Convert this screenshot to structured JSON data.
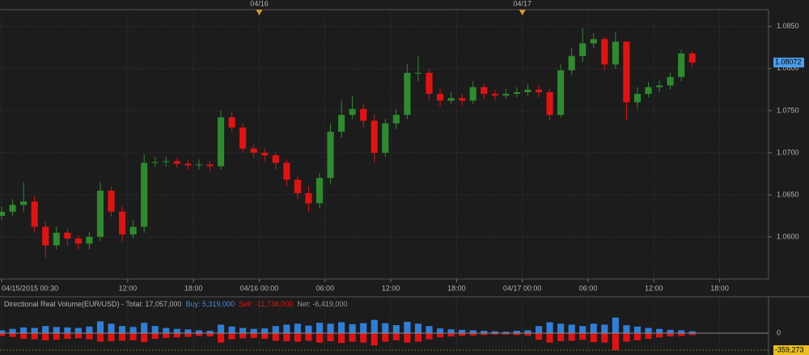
{
  "chart_data": {
    "type": "candlestick",
    "open": [
      1.0625,
      1.063,
      1.0638,
      1.0642,
      1.0612,
      1.059,
      1.0605,
      1.0598,
      1.0592,
      1.06,
      1.0655,
      1.063,
      1.0603,
      1.0612,
      1.0688,
      1.0689,
      1.069,
      1.0687,
      1.0685,
      1.0686,
      1.0684,
      1.0742,
      1.073,
      1.0705,
      1.07,
      1.0697,
      1.0688,
      1.0668,
      1.0652,
      1.064,
      1.067,
      1.0725,
      1.0745,
      1.0752,
      1.0738,
      1.07,
      1.0735,
      1.0745,
      1.0795,
      1.0795,
      1.077,
      1.0762,
      1.0765,
      1.0762,
      1.0778,
      1.077,
      1.0768,
      1.077,
      1.0772,
      1.0775,
      1.0772,
      1.0745,
      1.0798,
      1.0815,
      1.083,
      1.0835,
      1.0805,
      1.0832,
      1.076,
      1.077,
      1.0778,
      1.078,
      1.079,
      1.0818
    ],
    "high": [
      1.0636,
      1.0645,
      1.0665,
      1.0648,
      1.0618,
      1.0612,
      1.061,
      1.0602,
      1.0606,
      1.0665,
      1.066,
      1.0636,
      1.062,
      1.0698,
      1.0695,
      1.0695,
      1.0694,
      1.0691,
      1.0692,
      1.069,
      1.075,
      1.0748,
      1.0735,
      1.071,
      1.0705,
      1.07,
      1.0692,
      1.0672,
      1.066,
      1.0676,
      1.0735,
      1.0762,
      1.0768,
      1.0758,
      1.0745,
      1.074,
      1.0752,
      1.0805,
      1.0815,
      1.08,
      1.0776,
      1.0772,
      1.077,
      1.0785,
      1.0782,
      1.0775,
      1.0776,
      1.0778,
      1.0782,
      1.078,
      1.0776,
      1.0805,
      1.0825,
      1.0848,
      1.0842,
      1.0838,
      1.0843,
      1.0832,
      1.0778,
      1.0784,
      1.0786,
      1.0795,
      1.0822,
      1.082
    ],
    "low": [
      1.062,
      1.0625,
      1.063,
      1.0605,
      1.0575,
      1.0585,
      1.059,
      1.0585,
      1.0585,
      1.0595,
      1.0624,
      1.0595,
      1.0598,
      1.0605,
      1.0683,
      1.0684,
      1.0682,
      1.068,
      1.068,
      1.0678,
      1.068,
      1.0725,
      1.07,
      1.0694,
      1.069,
      1.068,
      1.066,
      1.0645,
      1.063,
      1.0634,
      1.0662,
      1.0718,
      1.074,
      1.073,
      1.0688,
      1.0695,
      1.0728,
      1.074,
      1.0785,
      1.0762,
      1.0755,
      1.0758,
      1.0756,
      1.0758,
      1.0764,
      1.0762,
      1.0764,
      1.0766,
      1.0768,
      1.0766,
      1.0738,
      1.0742,
      1.0792,
      1.0808,
      1.0825,
      1.0798,
      1.08,
      1.0738,
      1.0752,
      1.0766,
      1.0772,
      1.0775,
      1.0785,
      1.0802
    ],
    "close": [
      1.063,
      1.0638,
      1.0642,
      1.0612,
      1.059,
      1.0605,
      1.0598,
      1.0592,
      1.06,
      1.0655,
      1.063,
      1.0603,
      1.0612,
      1.0688,
      1.0689,
      1.069,
      1.0687,
      1.0685,
      1.0686,
      1.0684,
      1.0742,
      1.073,
      1.0705,
      1.07,
      1.0697,
      1.0688,
      1.0668,
      1.0652,
      1.064,
      1.067,
      1.0725,
      1.0745,
      1.0752,
      1.0738,
      1.07,
      1.0735,
      1.0745,
      1.0795,
      1.0795,
      1.077,
      1.0762,
      1.0765,
      1.0762,
      1.0778,
      1.077,
      1.0768,
      1.077,
      1.0772,
      1.0775,
      1.0772,
      1.0745,
      1.0798,
      1.0815,
      1.083,
      1.0835,
      1.0805,
      1.0832,
      1.076,
      1.077,
      1.0778,
      1.078,
      1.079,
      1.0818,
      1.08072
    ],
    "up_color": "#2e8b2e",
    "down_color": "#e31212",
    "last_price": 1.08072,
    "xlim": [
      -0.15,
      69.96
    ],
    "xticks": [
      {
        "value": 0,
        "label": "04/15/2015 00:30"
      },
      {
        "value": 11.5,
        "label": "12:00"
      },
      {
        "value": 17.5,
        "label": "18:00"
      },
      {
        "value": 23.5,
        "label": "04/16 00:00"
      },
      {
        "value": 29.5,
        "label": "06:00"
      },
      {
        "value": 35.5,
        "label": "12:00"
      },
      {
        "value": 41.5,
        "label": "18:00"
      },
      {
        "value": 47.5,
        "label": "04/17 00:00"
      },
      {
        "value": 53.5,
        "label": "06:00"
      },
      {
        "value": 59.5,
        "label": "12:00"
      },
      {
        "value": 65.5,
        "label": "18:00"
      }
    ],
    "day_markers": [
      {
        "value": 23.5,
        "label": "04/16"
      },
      {
        "value": 47.5,
        "label": "04/17"
      }
    ],
    "ylim": [
      1.055,
      1.087
    ],
    "yticks": [
      {
        "value": 1.06,
        "label": "1.0600"
      },
      {
        "value": 1.065,
        "label": "1.0650"
      },
      {
        "value": 1.07,
        "label": "1.0700"
      },
      {
        "value": 1.075,
        "label": "1.0750"
      },
      {
        "value": 1.08,
        "label": "1.0800"
      },
      {
        "value": 1.085,
        "label": "1.0850"
      }
    ],
    "grid": true,
    "volume": {
      "title": "Directional Real Volume(EUR/USD) -  Total: 17,057,000",
      "buy_label": "Buy: 5,319,000",
      "sell_label": "Sell: -11,738,000",
      "net_label": "Net: -6,419,000",
      "buy_color": "#2f7fd8",
      "sell_color": "#e31212",
      "buy": [
        60000,
        90000,
        120000,
        110000,
        150000,
        130000,
        120000,
        110000,
        140000,
        250000,
        200000,
        150000,
        130000,
        220000,
        150000,
        110000,
        90000,
        80000,
        60000,
        50000,
        180000,
        140000,
        110000,
        90000,
        100000,
        150000,
        180000,
        200000,
        160000,
        220000,
        200000,
        230000,
        190000,
        210000,
        280000,
        210000,
        170000,
        240000,
        200000,
        150000,
        100000,
        80000,
        70000,
        60000,
        50000,
        40000,
        30000,
        50000,
        60000,
        150000,
        230000,
        200000,
        180000,
        150000,
        200000,
        180000,
        330000,
        170000,
        140000,
        110000,
        90000,
        70000,
        60000,
        40000
      ],
      "sell": [
        -60000,
        -80000,
        -120000,
        -130000,
        -150000,
        -140000,
        -120000,
        -110000,
        -130000,
        -180000,
        -170000,
        -160000,
        -150000,
        -190000,
        -120000,
        -100000,
        -90000,
        -80000,
        -60000,
        -70000,
        -200000,
        -130000,
        -110000,
        -100000,
        -120000,
        -160000,
        -170000,
        -180000,
        -160000,
        -200000,
        -170000,
        -210000,
        -180000,
        -200000,
        -260000,
        -180000,
        -150000,
        -200000,
        -180000,
        -130000,
        -90000,
        -70000,
        -60000,
        -50000,
        -40000,
        -30000,
        -30000,
        -40000,
        -50000,
        -140000,
        -200000,
        -170000,
        -160000,
        -140000,
        -190000,
        -200000,
        -359273,
        -180000,
        -150000,
        -120000,
        -90000,
        -70000,
        -60000,
        -40000
      ],
      "ylim": [
        -462000,
        718000
      ],
      "yticks": [
        0,
        {
          "value": -359273,
          "label": "-359,273"
        }
      ]
    }
  }
}
